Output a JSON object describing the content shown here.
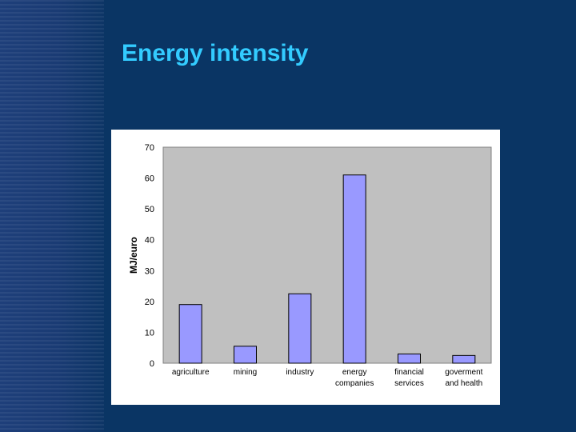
{
  "slide": {
    "title": "Energy intensity"
  },
  "colors": {
    "background": "#0a3564",
    "title": "#33ccff",
    "plot_area": "#c0c0c0",
    "bar_fill": "#9999ff",
    "bar_stroke": "#000000"
  },
  "chart_data": {
    "type": "bar",
    "categories": [
      [
        "agriculture"
      ],
      [
        "mining"
      ],
      [
        "industry"
      ],
      [
        "energy",
        "companies"
      ],
      [
        "financial",
        "services"
      ],
      [
        "goverment",
        "and health"
      ]
    ],
    "values": [
      19,
      5.5,
      22.5,
      61,
      3,
      2.5
    ],
    "ylabel": "MJ/euro",
    "ylim": [
      0,
      70
    ],
    "yticks": [
      0,
      10,
      20,
      30,
      40,
      50,
      60,
      70
    ],
    "grid": false,
    "legend": "none"
  }
}
